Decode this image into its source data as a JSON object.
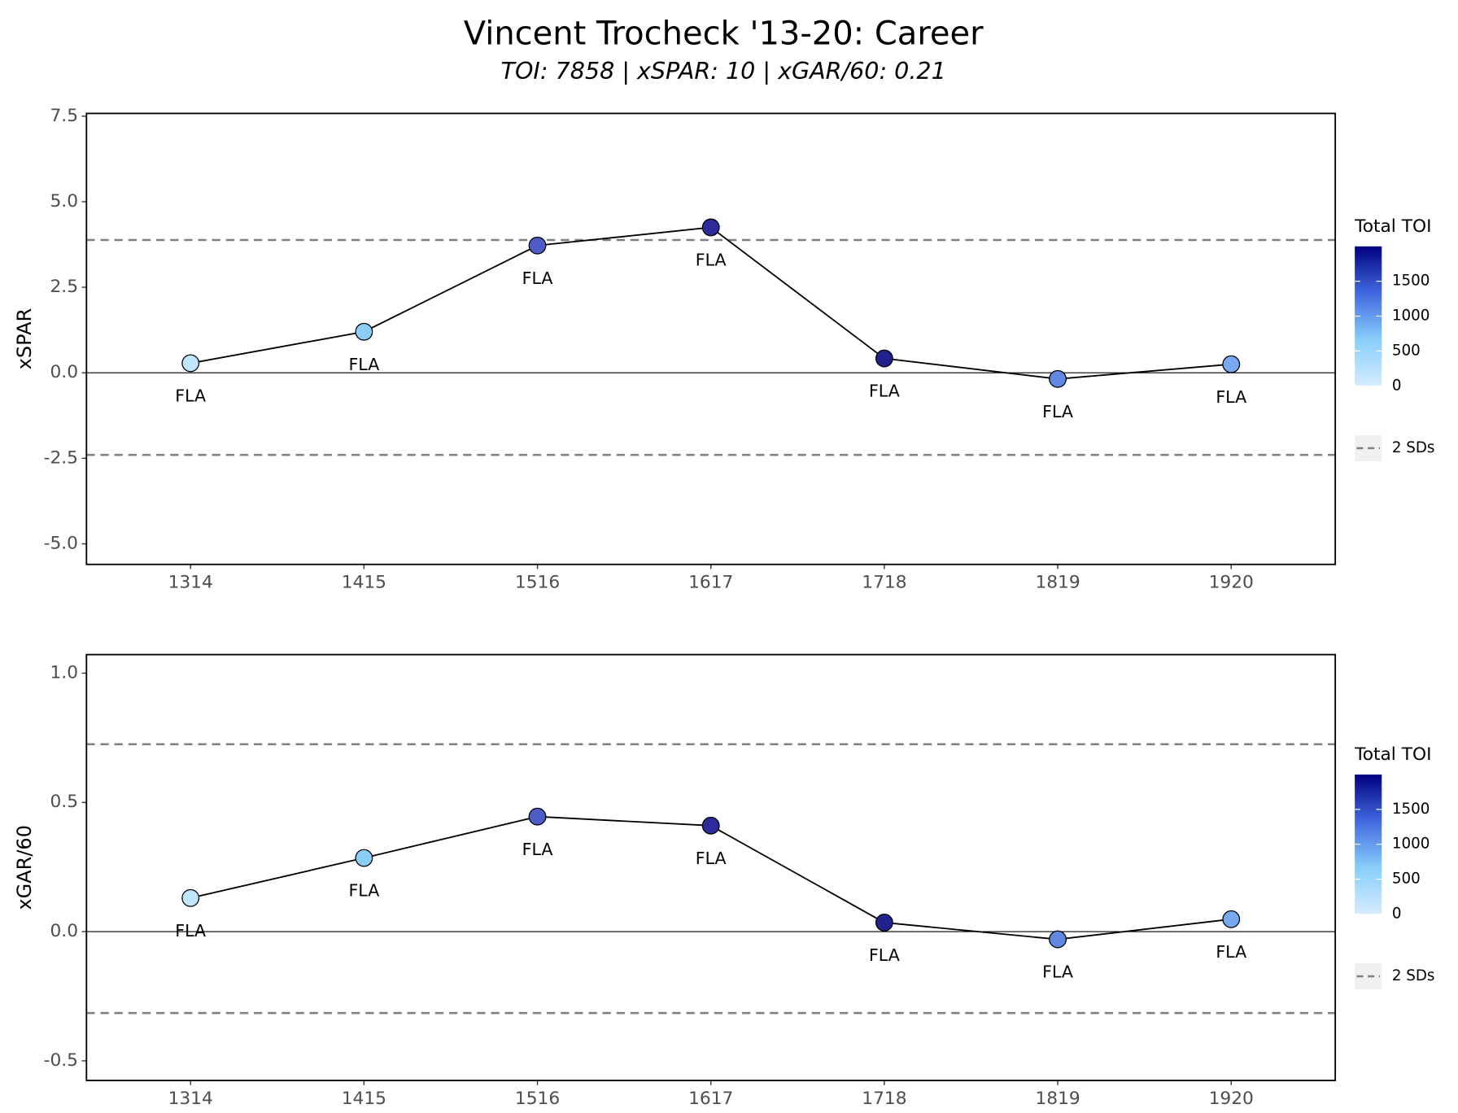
{
  "title": "Vincent Trocheck '13-20: Career",
  "subtitle": "TOI: 7858 | xSPAR: 10 | xGAR/60: 0.21",
  "chart_data": [
    {
      "type": "line",
      "ylabel": "xSPAR",
      "categories": [
        "1314",
        "1415",
        "1516",
        "1617",
        "1718",
        "1819",
        "1920"
      ],
      "series": [
        {
          "color": "#000000",
          "values": [
            0.28,
            1.2,
            3.72,
            4.25,
            0.42,
            -0.18,
            0.25
          ],
          "point_colors": [
            "#bfe6fd",
            "#8ccdf8",
            "#4d5cc6",
            "#2b2b9c",
            "#22228f",
            "#6088e0",
            "#78a8ef"
          ],
          "point_labels": [
            "FLA",
            "FLA",
            "FLA",
            "FLA",
            "FLA",
            "FLA",
            "FLA"
          ]
        }
      ],
      "ylim": [
        -5.6,
        7.58
      ],
      "yticks": [
        {
          "value": -5,
          "label": "-5.0"
        },
        {
          "value": -2.5,
          "label": "-2.5"
        },
        {
          "value": 0,
          "label": "0.0"
        },
        {
          "value": 2.5,
          "label": "2.5"
        },
        {
          "value": 5,
          "label": "5.0"
        },
        {
          "value": 7.5,
          "label": "7.5"
        }
      ],
      "zero_line": true,
      "sd_lines": [
        3.88,
        -2.4
      ],
      "sd_legend": "2 SDs",
      "colorbar": {
        "title": "Total TOI",
        "lim": [
          0,
          2000
        ],
        "ticks": [
          0,
          500,
          1000,
          1500
        ],
        "colors": [
          "#d6ecff",
          "#87cefa",
          "#4169e1",
          "#00007f"
        ]
      }
    },
    {
      "type": "line",
      "ylabel": "xGAR/60",
      "categories": [
        "1314",
        "1415",
        "1516",
        "1617",
        "1718",
        "1819",
        "1920"
      ],
      "series": [
        {
          "color": "#000000",
          "values": [
            0.13,
            0.285,
            0.445,
            0.41,
            0.035,
            -0.03,
            0.048
          ],
          "point_colors": [
            "#bfe6fd",
            "#8ccdf8",
            "#4d5cc6",
            "#2b2b9c",
            "#22228f",
            "#6088e0",
            "#78a8ef"
          ],
          "point_labels": [
            "FLA",
            "FLA",
            "FLA",
            "FLA",
            "FLA",
            "FLA",
            "FLA"
          ]
        }
      ],
      "ylim": [
        -0.576,
        1.072
      ],
      "yticks": [
        {
          "value": -0.5,
          "label": "-0.5"
        },
        {
          "value": 0,
          "label": "0.0"
        },
        {
          "value": 0.5,
          "label": "0.5"
        },
        {
          "value": 1,
          "label": "1.0"
        }
      ],
      "zero_line": true,
      "sd_lines": [
        0.725,
        -0.315
      ],
      "sd_legend": "2 SDs",
      "colorbar": {
        "title": "Total TOI",
        "lim": [
          0,
          2000
        ],
        "ticks": [
          0,
          500,
          1000,
          1500
        ],
        "colors": [
          "#d6ecff",
          "#87cefa",
          "#4169e1",
          "#00007f"
        ]
      }
    }
  ]
}
